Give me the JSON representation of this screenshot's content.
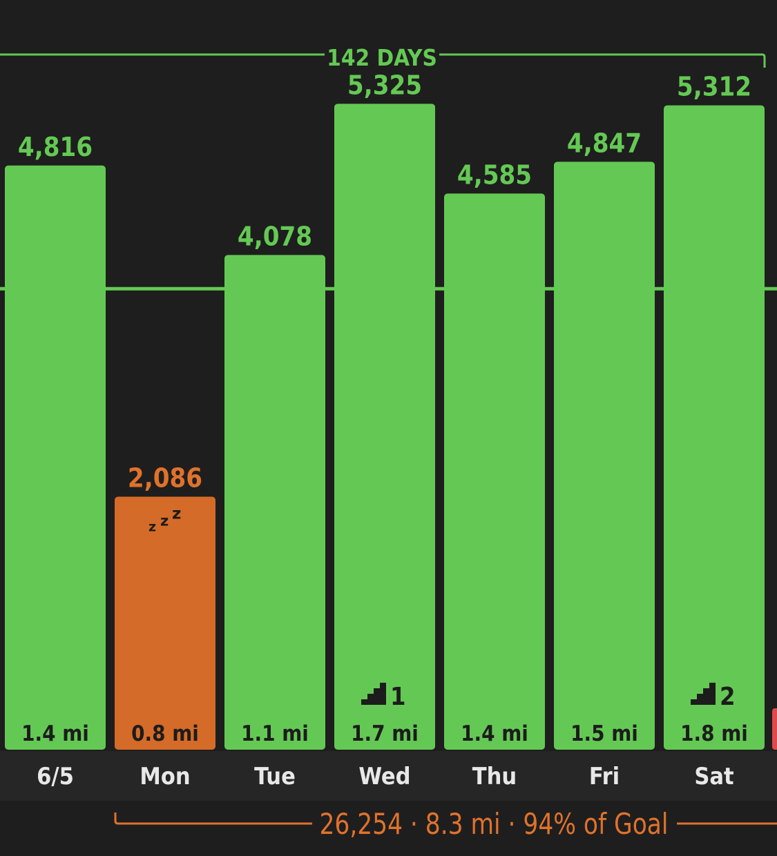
{
  "streak": {
    "label": "142 DAYS"
  },
  "summary": {
    "text": "26,254 · 8.3 mi · 94% of Goal"
  },
  "colors": {
    "background": "#1e1e1e",
    "day_strip": "#262626",
    "goal_met": "#64c954",
    "goal_missed": "#d56b28",
    "orange_text": "#e0722c",
    "dark_text": "#1c1c1c",
    "day_text": "#e8e8e8",
    "next_bar": "#e0494b"
  },
  "chart_data": {
    "type": "bar",
    "categories": [
      "6/5",
      "Mon",
      "Tue",
      "Wed",
      "Thu",
      "Fri",
      "Sat"
    ],
    "values": [
      4816,
      2086,
      4078,
      5325,
      4585,
      4847,
      5312
    ],
    "value_labels": [
      "4,816",
      "2,086",
      "4,078",
      "5,325",
      "4,585",
      "4,847",
      "5,312"
    ],
    "distance_labels": [
      "1.4 mi",
      "0.8 mi",
      "1.1 mi",
      "1.7 mi",
      "1.4 mi",
      "1.5 mi",
      "1.8 mi"
    ],
    "goal_met": [
      true,
      false,
      true,
      true,
      true,
      true,
      true
    ],
    "flights": [
      null,
      null,
      null,
      1,
      null,
      null,
      2
    ],
    "sleep_icon": [
      false,
      true,
      false,
      false,
      false,
      false,
      false
    ],
    "goal": 3800,
    "ylim": [
      0,
      5600
    ],
    "title": "",
    "xlabel": "",
    "ylabel": "",
    "grid": false
  }
}
